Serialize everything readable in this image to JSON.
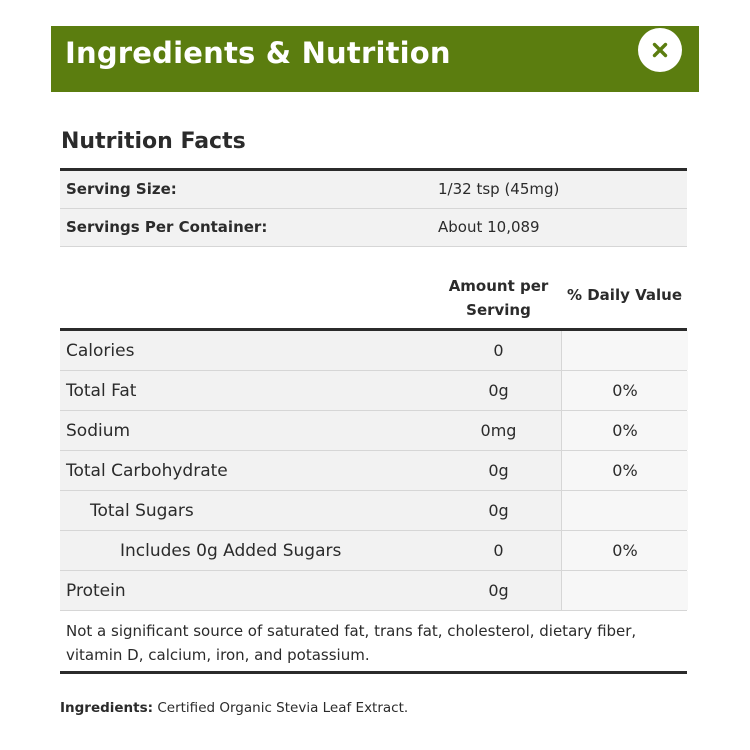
{
  "header": {
    "title": "Ingredients & Nutrition",
    "close_icon": "close-icon",
    "brand_color": "#5b7d0f"
  },
  "nutrition_facts": {
    "title": "Nutrition Facts",
    "serving_rows": [
      {
        "label": "Serving Size:",
        "value": "1/32 tsp (45mg)"
      },
      {
        "label": "Servings Per Container:",
        "value": "About 10,089"
      }
    ],
    "columns": {
      "amount_line1": "Amount per",
      "amount_line2": "Serving",
      "daily_value": "% Daily Value"
    },
    "rows": [
      {
        "name": "Calories",
        "indent": 0,
        "amount": "0",
        "dv": ""
      },
      {
        "name": "Total Fat",
        "indent": 0,
        "amount": "0g",
        "dv": "0%"
      },
      {
        "name": "Sodium",
        "indent": 0,
        "amount": "0mg",
        "dv": "0%"
      },
      {
        "name": "Total Carbohydrate",
        "indent": 0,
        "amount": "0g",
        "dv": "0%"
      },
      {
        "name": "Total Sugars",
        "indent": 1,
        "amount": "0g",
        "dv": ""
      },
      {
        "name": "Includes 0g Added Sugars",
        "indent": 2,
        "amount": "0",
        "dv": "0%"
      },
      {
        "name": "Protein",
        "indent": 0,
        "amount": "0g",
        "dv": ""
      }
    ],
    "footnote": "Not a significant source of saturated fat, trans fat, cholesterol, dietary fiber, vitamin D, calcium, iron, and potassium."
  },
  "ingredients": {
    "label": "Ingredients:",
    "text": "Certified Organic Stevia Leaf Extract."
  }
}
